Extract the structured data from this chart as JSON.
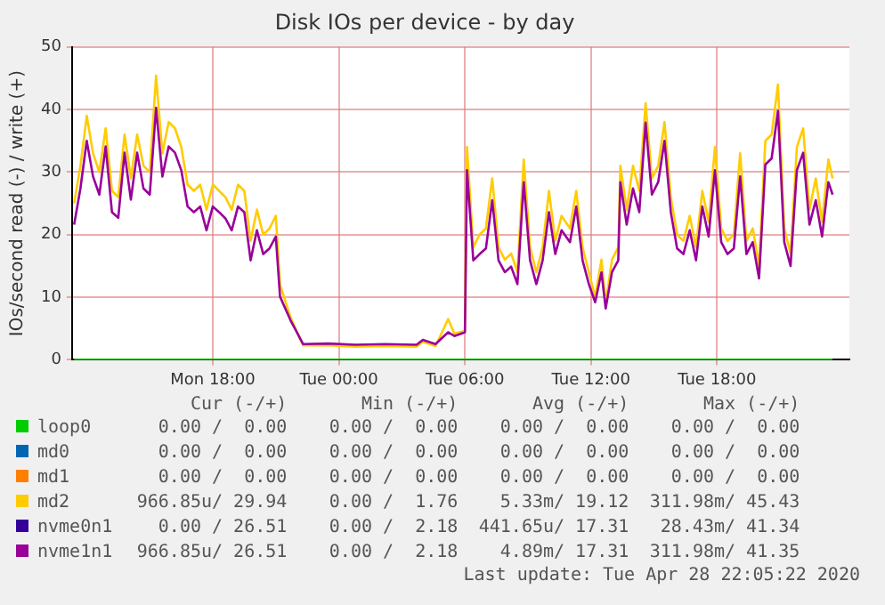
{
  "chart_data": {
    "type": "line",
    "title": "Disk IOs per device - by day",
    "ylabel": "IOs/second read (-) / write (+)",
    "xlim": [
      "2020-04-27T11:18",
      "2020-04-29T00:18"
    ],
    "xticks": [
      {
        "value": "2020-04-27T18:00",
        "label": "Mon 18:00"
      },
      {
        "value": "2020-04-28T00:00",
        "label": "Tue 00:00"
      },
      {
        "value": "2020-04-28T06:00",
        "label": "Tue 06:00"
      },
      {
        "value": "2020-04-28T12:00",
        "label": "Tue 12:00"
      },
      {
        "value": "2020-04-28T18:00",
        "label": "Tue 18:00"
      }
    ],
    "ylim": [
      0,
      50
    ],
    "yticks": [
      0,
      10,
      20,
      30,
      40,
      50
    ],
    "grid": true,
    "legend": "bottom",
    "marker": "none",
    "line_style": "solid",
    "x": [
      "2020-04-27T11:24",
      "2020-04-27T11:42",
      "2020-04-27T12:00",
      "2020-04-27T12:18",
      "2020-04-27T12:36",
      "2020-04-27T12:54",
      "2020-04-27T13:12",
      "2020-04-27T13:30",
      "2020-04-27T13:48",
      "2020-04-27T14:06",
      "2020-04-27T14:24",
      "2020-04-27T14:42",
      "2020-04-27T15:00",
      "2020-04-27T15:18",
      "2020-04-27T15:36",
      "2020-04-27T15:54",
      "2020-04-27T16:12",
      "2020-04-27T16:30",
      "2020-04-27T16:48",
      "2020-04-27T17:06",
      "2020-04-27T17:24",
      "2020-04-27T17:42",
      "2020-04-27T18:00",
      "2020-04-27T18:18",
      "2020-04-27T18:36",
      "2020-04-27T18:54",
      "2020-04-27T19:12",
      "2020-04-27T19:30",
      "2020-04-27T19:48",
      "2020-04-27T20:06",
      "2020-04-27T20:24",
      "2020-04-27T20:42",
      "2020-04-27T21:00",
      "2020-04-27T21:12",
      "2020-04-27T21:42",
      "2020-04-27T22:00",
      "2020-04-27T22:18",
      "2020-04-27T23:30",
      "2020-04-28T00:48",
      "2020-04-28T02:12",
      "2020-04-28T03:42",
      "2020-04-28T04:00",
      "2020-04-28T04:36",
      "2020-04-28T05:12",
      "2020-04-28T05:30",
      "2020-04-28T06:00",
      "2020-04-28T06:06",
      "2020-04-28T06:24",
      "2020-04-28T06:42",
      "2020-04-28T07:00",
      "2020-04-28T07:18",
      "2020-04-28T07:36",
      "2020-04-28T07:54",
      "2020-04-28T08:12",
      "2020-04-28T08:30",
      "2020-04-28T08:48",
      "2020-04-28T09:06",
      "2020-04-28T09:24",
      "2020-04-28T09:42",
      "2020-04-28T10:00",
      "2020-04-28T10:18",
      "2020-04-28T10:36",
      "2020-04-28T11:00",
      "2020-04-28T11:18",
      "2020-04-28T11:36",
      "2020-04-28T11:54",
      "2020-04-28T12:12",
      "2020-04-28T12:30",
      "2020-04-28T12:42",
      "2020-04-28T13:00",
      "2020-04-28T13:18",
      "2020-04-28T13:24",
      "2020-04-28T13:42",
      "2020-04-28T14:00",
      "2020-04-28T14:18",
      "2020-04-28T14:36",
      "2020-04-28T14:54",
      "2020-04-28T15:12",
      "2020-04-28T15:30",
      "2020-04-28T15:48",
      "2020-04-28T16:06",
      "2020-04-28T16:24",
      "2020-04-28T16:42",
      "2020-04-28T17:00",
      "2020-04-28T17:18",
      "2020-04-28T17:36",
      "2020-04-28T17:54",
      "2020-04-28T18:12",
      "2020-04-28T18:30",
      "2020-04-28T18:48",
      "2020-04-28T19:06",
      "2020-04-28T19:24",
      "2020-04-28T19:42",
      "2020-04-28T20:00",
      "2020-04-28T20:18",
      "2020-04-28T20:36",
      "2020-04-28T20:54",
      "2020-04-28T21:12",
      "2020-04-28T21:30",
      "2020-04-28T21:48",
      "2020-04-28T22:06",
      "2020-04-28T22:24",
      "2020-04-28T22:42",
      "2020-04-28T23:00",
      "2020-04-28T23:18",
      "2020-04-28T23:30"
    ],
    "series": [
      {
        "name": "loop0",
        "color": "#00cc00",
        "x": [
          "2020-04-27T11:24",
          "2020-04-28T23:30"
        ],
        "values": [
          0,
          0
        ]
      },
      {
        "name": "md0",
        "color": "#0066b3",
        "values": [
          null,
          null,
          null,
          null,
          null,
          null,
          null,
          null,
          null,
          null,
          null,
          null,
          null,
          null,
          null,
          null,
          null,
          null,
          null,
          null,
          null,
          null,
          null,
          null,
          null,
          null,
          null,
          null,
          null,
          null,
          null,
          null,
          null,
          null,
          null,
          null,
          null,
          null,
          null,
          null,
          null,
          null,
          null,
          null,
          null,
          null,
          null,
          null,
          null,
          null,
          null,
          null,
          null,
          null,
          null,
          null,
          null,
          null,
          null,
          null,
          null,
          null,
          null,
          null,
          null,
          null,
          null,
          null,
          null,
          null,
          null,
          null,
          null,
          null,
          null,
          null,
          null,
          null,
          null,
          null,
          null,
          null,
          null,
          null,
          null,
          null,
          null,
          null,
          null,
          null,
          null,
          null,
          null,
          null,
          null,
          null,
          null,
          null,
          null,
          null,
          null,
          null,
          null,
          null,
          null,
          null
        ]
      },
      {
        "name": "md1",
        "color": "#ff8000",
        "values": [
          null,
          null,
          null,
          null,
          null,
          null,
          null,
          null,
          null,
          null,
          null,
          null,
          null,
          null,
          null,
          null,
          null,
          null,
          null,
          null,
          null,
          null,
          null,
          null,
          null,
          null,
          null,
          null,
          null,
          null,
          null,
          null,
          null,
          null,
          null,
          null,
          null,
          null,
          null,
          null,
          null,
          null,
          null,
          null,
          null,
          null,
          null,
          null,
          null,
          null,
          null,
          null,
          null,
          null,
          null,
          null,
          null,
          null,
          null,
          null,
          null,
          null,
          null,
          null,
          null,
          null,
          null,
          null,
          null,
          null,
          null,
          null,
          null,
          null,
          null,
          null,
          null,
          null,
          null,
          null,
          null,
          null,
          null,
          null,
          null,
          null,
          null,
          null,
          null,
          null,
          null,
          null,
          null,
          null,
          null,
          null,
          null,
          null,
          null,
          null,
          null,
          null,
          null,
          null,
          null,
          null
        ]
      },
      {
        "name": "md2",
        "color": "#ffcc00",
        "values": [
          25,
          31,
          39,
          33,
          30,
          37,
          27,
          26,
          36,
          29,
          36,
          31,
          30,
          45.4,
          33,
          38,
          37,
          34,
          28,
          27,
          28,
          24,
          28,
          27,
          26,
          24,
          28,
          27,
          19,
          24,
          20,
          21,
          23,
          12,
          6.8,
          4.5,
          2.3,
          2.3,
          2.1,
          2.2,
          2.1,
          2.9,
          2.2,
          6.5,
          4.2,
          4.6,
          34,
          18,
          20,
          21,
          29,
          18,
          16,
          17,
          14,
          32,
          18,
          14,
          18,
          27,
          19,
          23,
          21,
          27,
          18,
          14,
          10,
          16,
          9,
          16,
          18,
          31,
          24,
          31,
          27,
          41,
          29,
          31,
          38,
          26,
          20,
          19,
          23,
          18,
          27,
          22,
          34,
          21,
          19,
          20,
          33,
          19,
          21,
          15,
          35,
          36,
          44,
          21,
          17,
          34,
          37,
          24,
          29,
          22,
          32,
          29
        ]
      },
      {
        "name": "nvme0n1",
        "color": "#330099",
        "values": [
          null,
          null,
          null,
          null,
          null,
          null,
          null,
          null,
          null,
          null,
          null,
          null,
          null,
          null,
          null,
          null,
          null,
          null,
          null,
          null,
          null,
          null,
          null,
          null,
          null,
          null,
          null,
          null,
          null,
          null,
          null,
          null,
          null,
          null,
          null,
          null,
          null,
          null,
          null,
          null,
          null,
          null,
          null,
          null,
          null,
          null,
          null,
          null,
          null,
          null,
          null,
          null,
          null,
          null,
          null,
          null,
          null,
          null,
          null,
          null,
          null,
          null,
          null,
          null,
          null,
          null,
          null,
          null,
          null,
          null,
          null,
          null,
          null,
          null,
          null,
          null,
          null,
          null,
          null,
          null,
          null,
          null,
          null,
          null,
          null,
          null,
          null,
          null,
          null,
          null,
          null,
          null,
          null,
          null,
          null,
          null,
          null,
          null,
          null,
          null,
          null,
          null,
          null,
          null,
          null,
          null
        ]
      },
      {
        "name": "nvme1n1",
        "color": "#990099",
        "values": [
          21.6,
          27.4,
          35,
          29.3,
          26.4,
          34.1,
          23.6,
          22.7,
          33.1,
          25.6,
          33.1,
          27.4,
          26.4,
          40.3,
          29.3,
          34.1,
          33.1,
          30.3,
          24.5,
          23.6,
          24.5,
          20.7,
          24.5,
          23.6,
          22.6,
          20.7,
          24.5,
          23.6,
          15.9,
          20.7,
          16.9,
          17.8,
          19.7,
          10.1,
          6.3,
          4.4,
          2.5,
          2.6,
          2.4,
          2.5,
          2.4,
          3.2,
          2.5,
          4.4,
          3.8,
          4.4,
          30.3,
          15.9,
          16.9,
          17.8,
          25.5,
          15.9,
          14,
          14.9,
          12.1,
          28.4,
          15.9,
          12.1,
          15.9,
          23.6,
          16.9,
          20.7,
          18.8,
          24.5,
          15.9,
          12.1,
          9.2,
          14,
          8.2,
          14,
          15.9,
          28.4,
          21.6,
          27.4,
          23.6,
          37.9,
          26.4,
          28.4,
          35,
          23.6,
          17.8,
          16.9,
          20.7,
          15.9,
          24.5,
          19.7,
          30.3,
          18.8,
          16.9,
          17.8,
          29.3,
          16.9,
          18.8,
          13,
          31.2,
          32.2,
          39.8,
          18.8,
          15,
          30.3,
          33.1,
          21.6,
          25.5,
          19.7,
          28.4,
          26.4
        ]
      }
    ],
    "annotations": [
      "Cur (-/+)",
      "Min (-/+)",
      "Avg (-/+)",
      "Max (-/+)",
      "0.00 /  0.00",
      "0.00 /  0.00",
      "0.00 /  0.00",
      "0.00 /  0.00",
      "0.00 /  0.00",
      "0.00 /  0.00",
      "0.00 /  0.00",
      "0.00 /  0.00",
      "0.00 /  0.00",
      "0.00 /  0.00",
      "0.00 /  0.00",
      "0.00 /  0.00",
      "966.85u/ 29.94",
      "0.00 /  1.76",
      "5.33m/ 19.12",
      "311.98m/ 45.43",
      "0.00 / 26.51",
      "0.00 /  2.18",
      "441.65u/ 17.31",
      "28.43m/ 41.34",
      "966.85u/ 26.51",
      "0.00 /  2.18",
      "4.89m/ 17.31",
      "311.98m/ 41.35",
      "Last update: Tue Apr 28 22:05:22 2020"
    ]
  }
}
